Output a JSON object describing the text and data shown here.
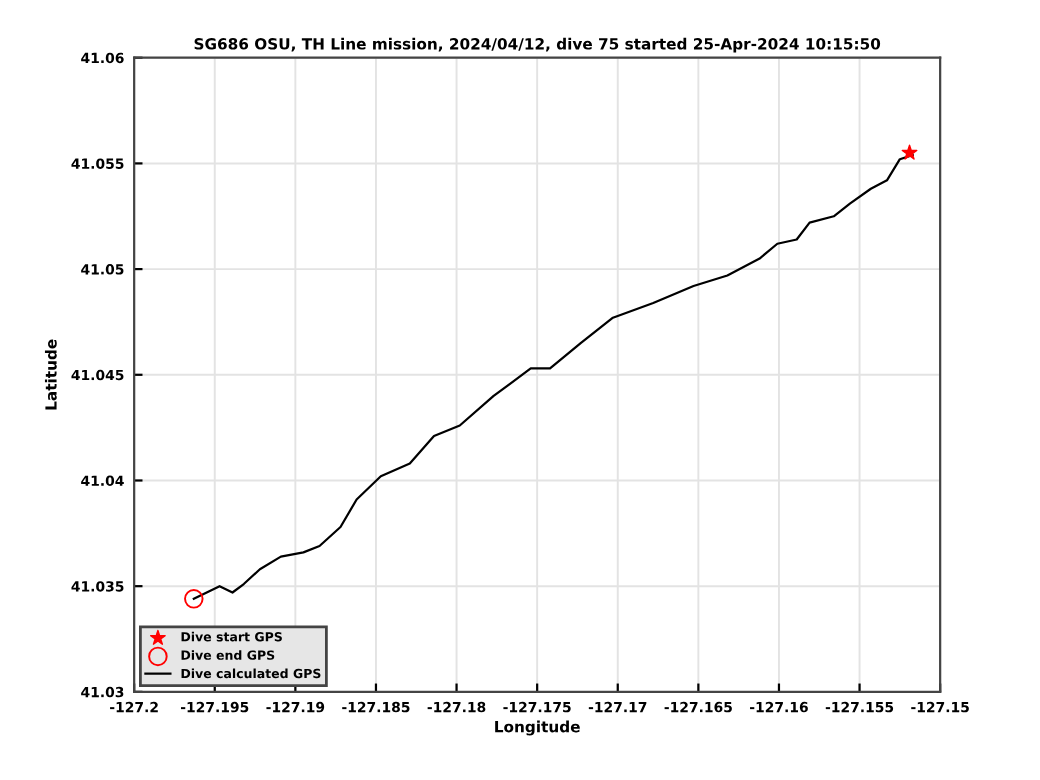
{
  "chart_data": {
    "type": "line",
    "title": "SG686 OSU, TH Line mission, 2024/04/12, dive 75 started 25-Apr-2024 10:15:50",
    "xlabel": "Longitude",
    "ylabel": "Latitude",
    "series": [
      {
        "name": "Dive start GPS",
        "type": "scatter",
        "marker": "star",
        "color": "#ff0000",
        "x": [
          -127.1519
        ],
        "values": [
          41.0555
        ]
      },
      {
        "name": "Dive end GPS",
        "type": "scatter",
        "marker": "circle",
        "color": "#ff0000",
        "x": [
          -127.1963
        ],
        "values": [
          41.0344
        ]
      },
      {
        "name": "Dive calculated GPS",
        "color": "#000000",
        "x": [
          -127.1963,
          -127.1947,
          -127.1939,
          -127.1932,
          -127.1922,
          -127.1909,
          -127.1895,
          -127.1885,
          -127.1872,
          -127.1862,
          -127.1847,
          -127.1829,
          -127.1814,
          -127.1798,
          -127.1777,
          -127.1754,
          -127.1742,
          -127.1723,
          -127.1703,
          -127.1678,
          -127.1653,
          -127.1632,
          -127.1612,
          -127.1601,
          -127.1589,
          -127.1581,
          -127.1566,
          -127.1556,
          -127.1543,
          -127.1533,
          -127.1525,
          -127.1517
        ],
        "values": [
          41.0344,
          41.035,
          41.0347,
          41.0351,
          41.0358,
          41.0364,
          41.0366,
          41.0369,
          41.0378,
          41.0391,
          41.0402,
          41.0408,
          41.0421,
          41.0426,
          41.044,
          41.0453,
          41.0453,
          41.0465,
          41.0477,
          41.0484,
          41.0492,
          41.0497,
          41.0505,
          41.0512,
          41.0514,
          41.0522,
          41.0525,
          41.0531,
          41.0538,
          41.0542,
          41.0552,
          41.0554
        ]
      }
    ],
    "xlim": [
      -127.2,
      -127.15
    ],
    "xticks": [
      -127.2,
      -127.195,
      -127.19,
      -127.185,
      -127.18,
      -127.175,
      -127.17,
      -127.165,
      -127.16,
      -127.155,
      -127.15
    ],
    "ylim": [
      41.03,
      41.06
    ],
    "yticks": [
      41.03,
      41.035,
      41.04,
      41.045,
      41.05,
      41.055,
      41.06
    ],
    "grid": true,
    "legend": "bottom left"
  }
}
